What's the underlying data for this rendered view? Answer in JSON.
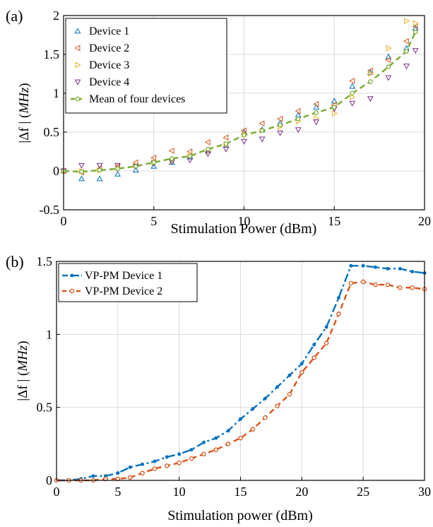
{
  "chart_data": [
    {
      "panel_label": "(a)",
      "type": "scatter",
      "xlabel": "Stimulation Power (dBm)",
      "ylabel_main": "|Δf | (",
      "ylabel_unit": "MHz",
      "ylabel_end": ")",
      "xlim": [
        0,
        20
      ],
      "ylim": [
        -0.5,
        2
      ],
      "xticks": [
        "0",
        "5",
        "10",
        "15",
        "20"
      ],
      "yticks": [
        "-0.5",
        "0",
        "0.5",
        "1",
        "1.5",
        "2"
      ],
      "xtick_values": [
        0,
        5,
        10,
        15,
        20
      ],
      "ytick_values": [
        -0.5,
        0,
        0.5,
        1,
        1.5,
        2
      ],
      "grid": true,
      "legend_position": "top-left",
      "x": [
        0,
        1,
        2,
        3,
        4,
        5,
        6,
        7,
        8,
        9,
        10,
        11,
        12,
        13,
        14,
        15,
        16,
        17,
        18,
        19,
        19.5
      ],
      "series": [
        {
          "name": "Device 1",
          "marker": "triangle-up",
          "color": "#0072BD",
          "values": [
            0.0,
            -0.1,
            -0.1,
            -0.04,
            0.01,
            0.06,
            0.11,
            0.18,
            0.26,
            0.33,
            0.5,
            0.53,
            0.62,
            0.72,
            0.82,
            0.9,
            1.09,
            1.27,
            1.47,
            1.58,
            1.84
          ]
        },
        {
          "name": "Device 2",
          "marker": "triangle-left",
          "color": "#D95319",
          "values": [
            0.0,
            -0.02,
            0.03,
            0.06,
            0.11,
            0.17,
            0.26,
            0.25,
            0.37,
            0.43,
            0.52,
            0.61,
            0.67,
            0.77,
            0.86,
            0.85,
            1.16,
            1.29,
            1.43,
            1.67,
            1.86
          ]
        },
        {
          "name": "Device 3",
          "marker": "triangle-right",
          "color": "#EDB120",
          "values": [
            0.0,
            0.0,
            0.01,
            0.04,
            0.07,
            0.11,
            0.13,
            0.19,
            0.25,
            0.34,
            0.47,
            0.52,
            0.57,
            0.64,
            0.68,
            0.74,
            0.95,
            1.25,
            1.58,
            1.93,
            1.9
          ]
        },
        {
          "name": "Device 4",
          "marker": "triangle-down",
          "color": "#7E2F8E",
          "values": [
            0.0,
            0.07,
            0.07,
            0.07,
            0.06,
            0.1,
            0.12,
            0.14,
            0.22,
            0.28,
            0.38,
            0.41,
            0.49,
            0.53,
            0.63,
            0.8,
            0.87,
            0.93,
            1.2,
            1.35,
            1.55
          ]
        },
        {
          "name": "Mean of four devices",
          "marker": "circle",
          "color": "#77AC30",
          "line": "dashed",
          "values": [
            0.0,
            -0.01,
            0.01,
            0.03,
            0.06,
            0.11,
            0.16,
            0.19,
            0.28,
            0.35,
            0.46,
            0.52,
            0.59,
            0.67,
            0.75,
            0.82,
            1.0,
            1.15,
            1.34,
            1.54,
            1.79
          ]
        }
      ]
    },
    {
      "panel_label": "(b)",
      "type": "line",
      "xlabel": "Stimulation power (dBm)",
      "ylabel_main": "|Δf | (",
      "ylabel_unit": "MHz",
      "ylabel_end": ")",
      "xlim": [
        0,
        30
      ],
      "ylim": [
        0,
        1.5
      ],
      "xticks": [
        "0",
        "5",
        "10",
        "15",
        "20",
        "25",
        "30"
      ],
      "yticks": [
        "0",
        "0.5",
        "1",
        "1.5"
      ],
      "xtick_values": [
        0,
        5,
        10,
        15,
        20,
        25,
        30
      ],
      "ytick_values": [
        0,
        0.5,
        1,
        1.5
      ],
      "grid": true,
      "legend_position": "top-left",
      "x": [
        0,
        1,
        2,
        3,
        4,
        5,
        6,
        7,
        8,
        9,
        10,
        11,
        12,
        13,
        14,
        15,
        16,
        17,
        18,
        19,
        20,
        21,
        22,
        23,
        24,
        25,
        26,
        27,
        28,
        29,
        30
      ],
      "series": [
        {
          "name": "VP-PM Device 1",
          "marker": "dot",
          "color": "#0072BD",
          "line": "dashdot",
          "values": [
            0.0,
            0.0,
            0.01,
            0.03,
            0.03,
            0.05,
            0.09,
            0.11,
            0.13,
            0.16,
            0.18,
            0.21,
            0.26,
            0.29,
            0.34,
            0.42,
            0.49,
            0.56,
            0.64,
            0.72,
            0.8,
            0.93,
            1.05,
            1.25,
            1.47,
            1.47,
            1.46,
            1.45,
            1.45,
            1.43,
            1.42
          ]
        },
        {
          "name": "VP-PM Device 2",
          "marker": "circle",
          "color": "#D95319",
          "line": "dashed",
          "values": [
            0.0,
            0.0,
            0.0,
            0.0,
            0.01,
            0.01,
            0.02,
            0.05,
            0.08,
            0.1,
            0.12,
            0.15,
            0.18,
            0.21,
            0.25,
            0.29,
            0.35,
            0.43,
            0.51,
            0.59,
            0.74,
            0.84,
            0.94,
            1.14,
            1.35,
            1.36,
            1.34,
            1.34,
            1.32,
            1.32,
            1.31
          ]
        }
      ]
    }
  ]
}
